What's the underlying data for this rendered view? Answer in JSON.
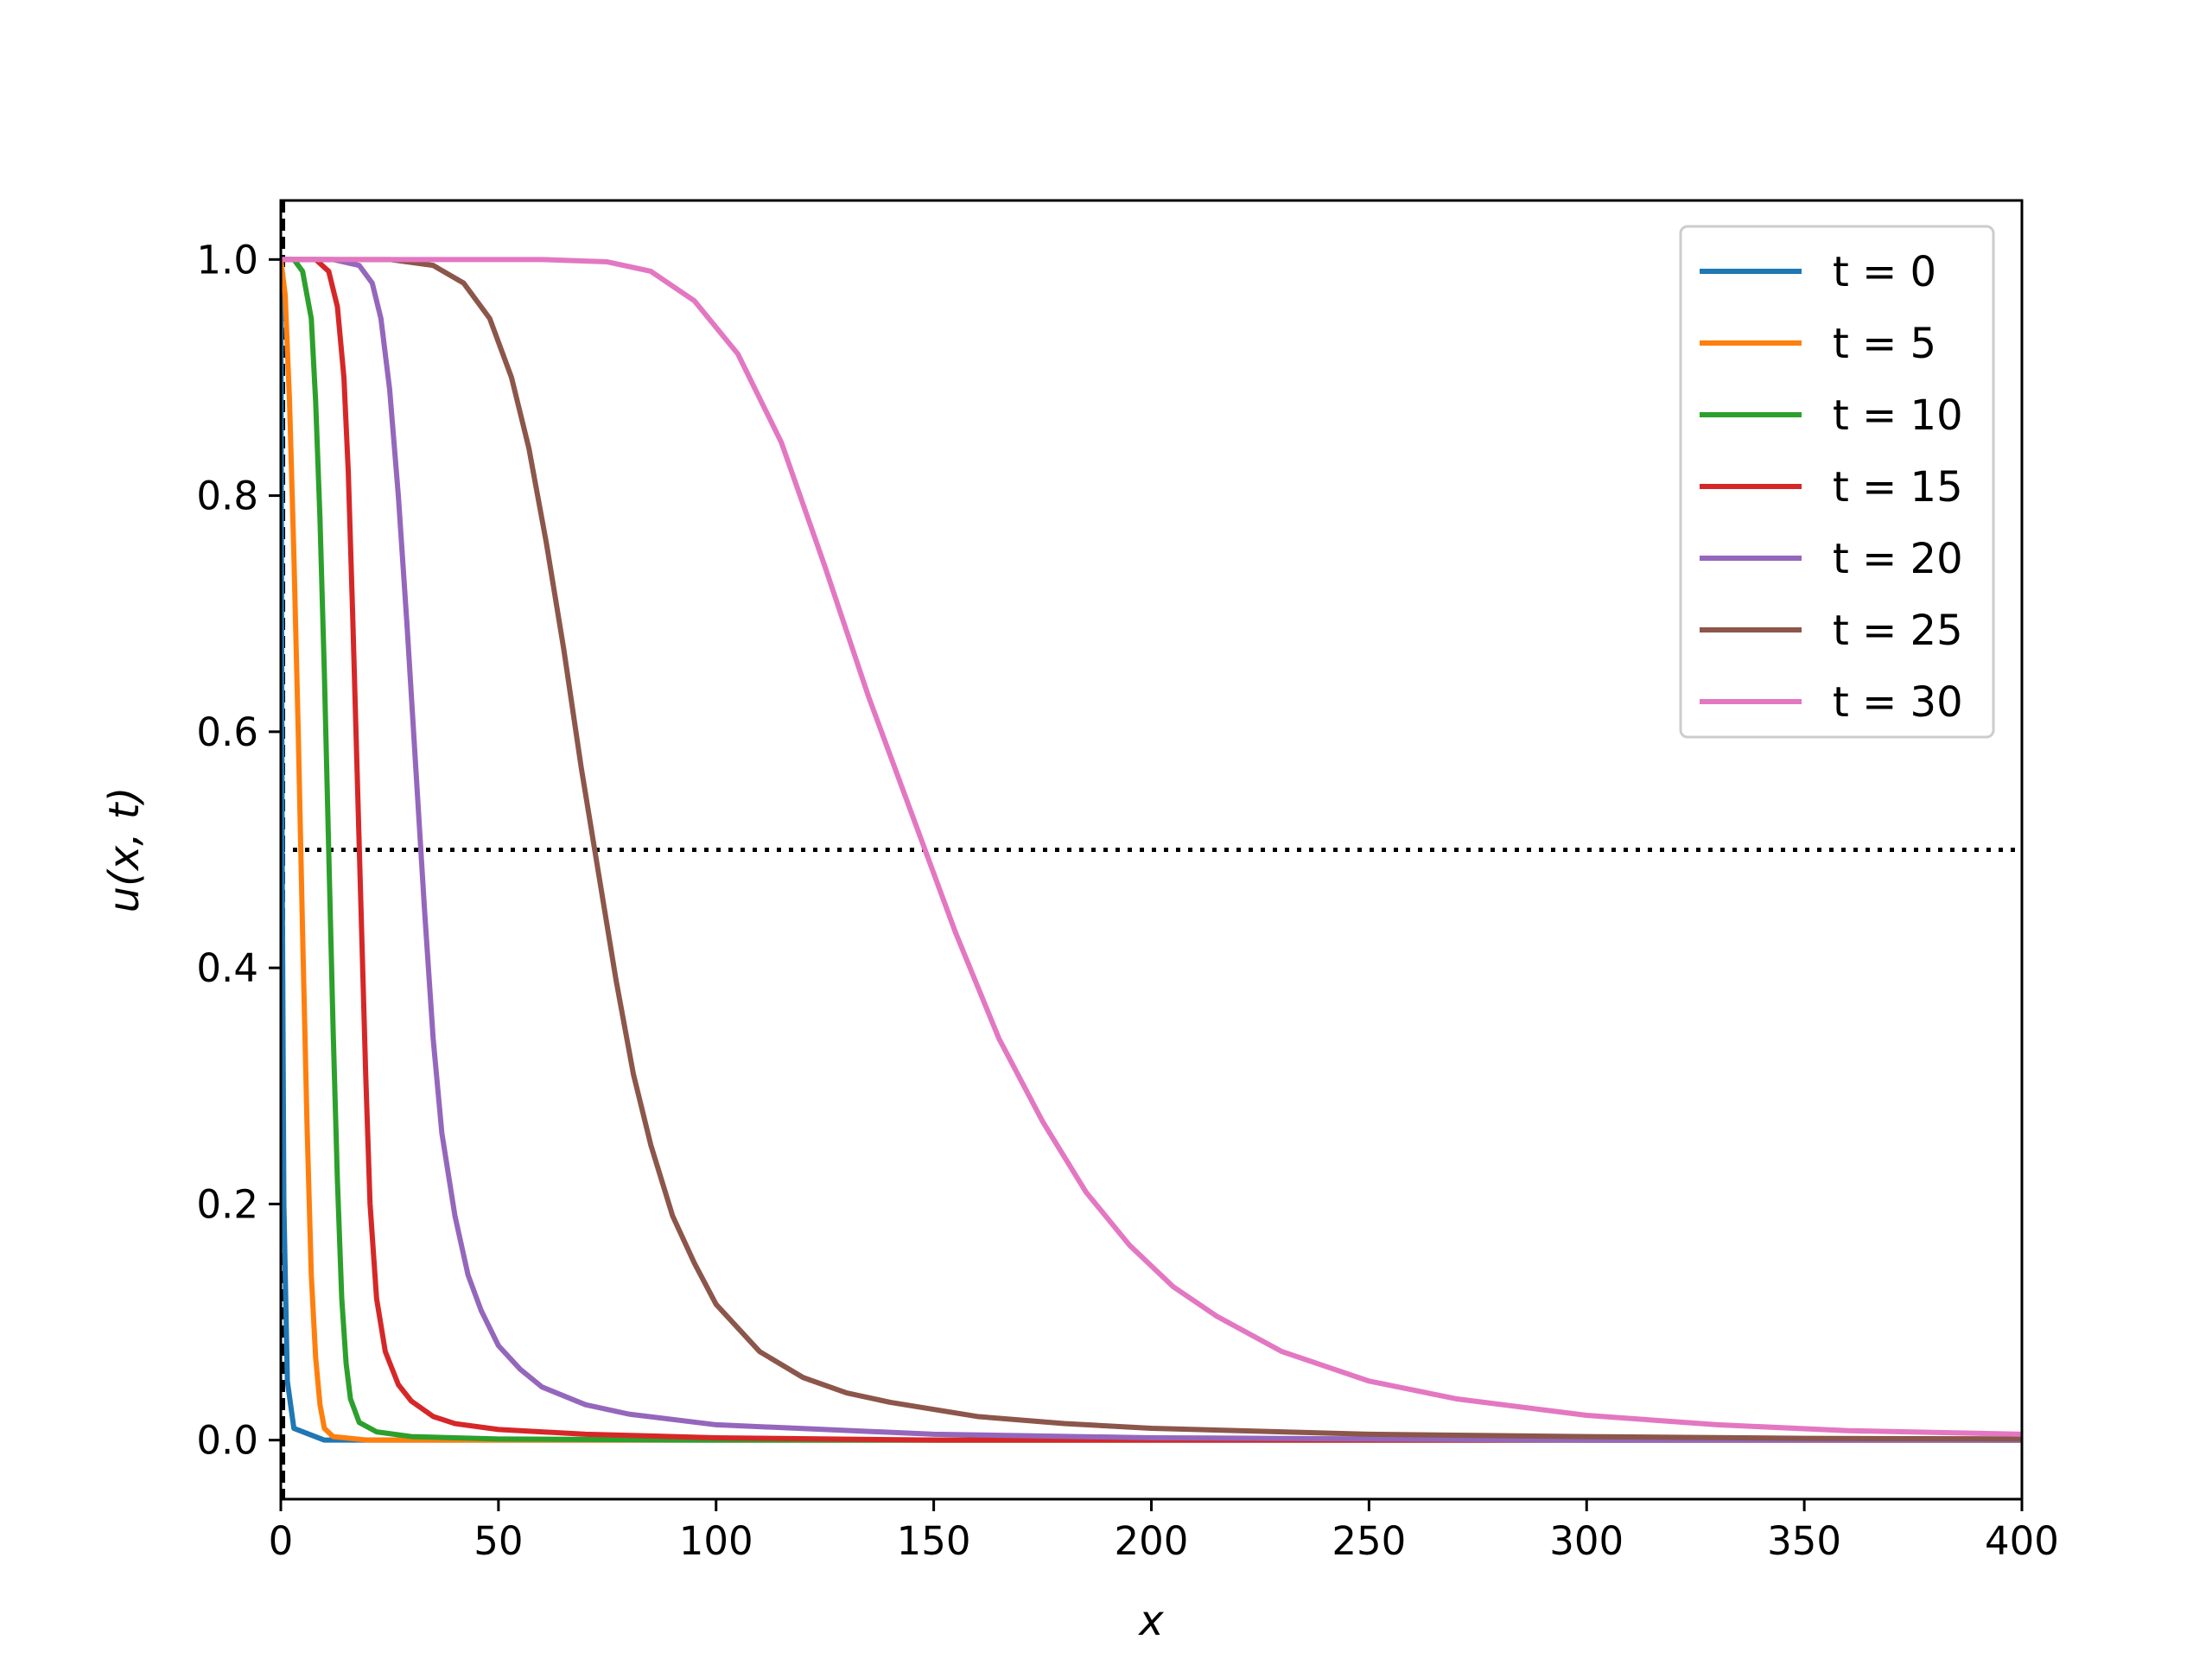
{
  "chart_data": {
    "type": "line",
    "title": "",
    "xlabel": "x",
    "ylabel": "u(x, t)",
    "xlim": [
      0,
      400
    ],
    "ylim": [
      -0.05,
      1.05
    ],
    "xticks": [
      "0",
      "50",
      "100",
      "150",
      "200",
      "250",
      "300",
      "350",
      "400"
    ],
    "yticks": [
      "0.0",
      "0.2",
      "0.4",
      "0.6",
      "0.8",
      "1.0"
    ],
    "grid": false,
    "legend": "top-right",
    "reference_lines": [
      {
        "orientation": "horizontal",
        "y": 0.5,
        "style": "dotted",
        "color": "#000000"
      },
      {
        "orientation": "vertical",
        "x": 0.5,
        "style": "dashed",
        "color": "#000000"
      }
    ],
    "series": [
      {
        "name": "t = 0",
        "color": "#1f77b4",
        "points": [
          [
            0,
            1.0
          ],
          [
            0.3,
            0.5
          ],
          [
            0.7,
            0.2
          ],
          [
            1.5,
            0.05
          ],
          [
            3,
            0.01
          ],
          [
            10,
            0.0
          ],
          [
            400,
            0.0
          ]
        ]
      },
      {
        "name": "t = 5",
        "color": "#ff7f0e",
        "points": [
          [
            0,
            1.0
          ],
          [
            1,
            0.97
          ],
          [
            2,
            0.88
          ],
          [
            3,
            0.75
          ],
          [
            4,
            0.6
          ],
          [
            5,
            0.43
          ],
          [
            6,
            0.27
          ],
          [
            7,
            0.14
          ],
          [
            8,
            0.07
          ],
          [
            9,
            0.03
          ],
          [
            10,
            0.01
          ],
          [
            12,
            0.003
          ],
          [
            20,
            0.0
          ],
          [
            400,
            0.0
          ]
        ]
      },
      {
        "name": "t = 10",
        "color": "#2ca02c",
        "points": [
          [
            0,
            1.0
          ],
          [
            3,
            1.0
          ],
          [
            5,
            0.99
          ],
          [
            7,
            0.95
          ],
          [
            8,
            0.88
          ],
          [
            9,
            0.78
          ],
          [
            10,
            0.65
          ],
          [
            11,
            0.5
          ],
          [
            12,
            0.35
          ],
          [
            13,
            0.22
          ],
          [
            14,
            0.12
          ],
          [
            15,
            0.065
          ],
          [
            16,
            0.035
          ],
          [
            18,
            0.015
          ],
          [
            22,
            0.007
          ],
          [
            30,
            0.003
          ],
          [
            50,
            0.001
          ],
          [
            100,
            0.0
          ],
          [
            400,
            0.0
          ]
        ]
      },
      {
        "name": "t = 15",
        "color": "#d62728",
        "points": [
          [
            0,
            1.0
          ],
          [
            8,
            1.0
          ],
          [
            11,
            0.99
          ],
          [
            13,
            0.96
          ],
          [
            14.5,
            0.9
          ],
          [
            15.5,
            0.82
          ],
          [
            16.5,
            0.7
          ],
          [
            17.5,
            0.57
          ],
          [
            18.5,
            0.44
          ],
          [
            19.5,
            0.31
          ],
          [
            20.5,
            0.2
          ],
          [
            22,
            0.12
          ],
          [
            24,
            0.075
          ],
          [
            27,
            0.047
          ],
          [
            30,
            0.033
          ],
          [
            35,
            0.02
          ],
          [
            40,
            0.014
          ],
          [
            50,
            0.009
          ],
          [
            70,
            0.005
          ],
          [
            100,
            0.002
          ],
          [
            150,
            0.0
          ],
          [
            400,
            0.0
          ]
        ]
      },
      {
        "name": "t = 20",
        "color": "#9467bd",
        "points": [
          [
            0,
            1.0
          ],
          [
            12,
            1.0
          ],
          [
            18,
            0.995
          ],
          [
            21,
            0.98
          ],
          [
            23,
            0.95
          ],
          [
            25,
            0.89
          ],
          [
            27,
            0.8
          ],
          [
            29,
            0.69
          ],
          [
            31,
            0.57
          ],
          [
            33,
            0.45
          ],
          [
            35,
            0.34
          ],
          [
            37,
            0.26
          ],
          [
            40,
            0.19
          ],
          [
            43,
            0.14
          ],
          [
            46,
            0.11
          ],
          [
            50,
            0.08
          ],
          [
            55,
            0.06
          ],
          [
            60,
            0.045
          ],
          [
            70,
            0.03
          ],
          [
            80,
            0.022
          ],
          [
            100,
            0.013
          ],
          [
            150,
            0.005
          ],
          [
            200,
            0.002
          ],
          [
            300,
            0.0
          ],
          [
            400,
            0.0
          ]
        ]
      },
      {
        "name": "t = 25",
        "color": "#8c564b",
        "points": [
          [
            0,
            1.0
          ],
          [
            25,
            1.0
          ],
          [
            35,
            0.995
          ],
          [
            42,
            0.98
          ],
          [
            48,
            0.95
          ],
          [
            53,
            0.9
          ],
          [
            57,
            0.84
          ],
          [
            61,
            0.76
          ],
          [
            65,
            0.67
          ],
          [
            69,
            0.57
          ],
          [
            73,
            0.48
          ],
          [
            77,
            0.39
          ],
          [
            81,
            0.31
          ],
          [
            85,
            0.25
          ],
          [
            90,
            0.19
          ],
          [
            95,
            0.15
          ],
          [
            100,
            0.115
          ],
          [
            110,
            0.075
          ],
          [
            120,
            0.053
          ],
          [
            130,
            0.04
          ],
          [
            140,
            0.032
          ],
          [
            160,
            0.02
          ],
          [
            180,
            0.014
          ],
          [
            200,
            0.01
          ],
          [
            250,
            0.005
          ],
          [
            300,
            0.003
          ],
          [
            350,
            0.0015
          ],
          [
            400,
            0.001
          ]
        ]
      },
      {
        "name": "t = 30",
        "color": "#e377c2",
        "points": [
          [
            0,
            1.0
          ],
          [
            30,
            1.0
          ],
          [
            60,
            1.0
          ],
          [
            75,
            0.998
          ],
          [
            85,
            0.99
          ],
          [
            95,
            0.965
          ],
          [
            105,
            0.92
          ],
          [
            115,
            0.845
          ],
          [
            125,
            0.74
          ],
          [
            135,
            0.63
          ],
          [
            145,
            0.53
          ],
          [
            150,
            0.48
          ],
          [
            155,
            0.43
          ],
          [
            165,
            0.34
          ],
          [
            175,
            0.27
          ],
          [
            185,
            0.21
          ],
          [
            195,
            0.165
          ],
          [
            205,
            0.13
          ],
          [
            215,
            0.105
          ],
          [
            230,
            0.075
          ],
          [
            250,
            0.05
          ],
          [
            270,
            0.035
          ],
          [
            300,
            0.021
          ],
          [
            330,
            0.013
          ],
          [
            360,
            0.008
          ],
          [
            400,
            0.005
          ]
        ]
      }
    ]
  }
}
